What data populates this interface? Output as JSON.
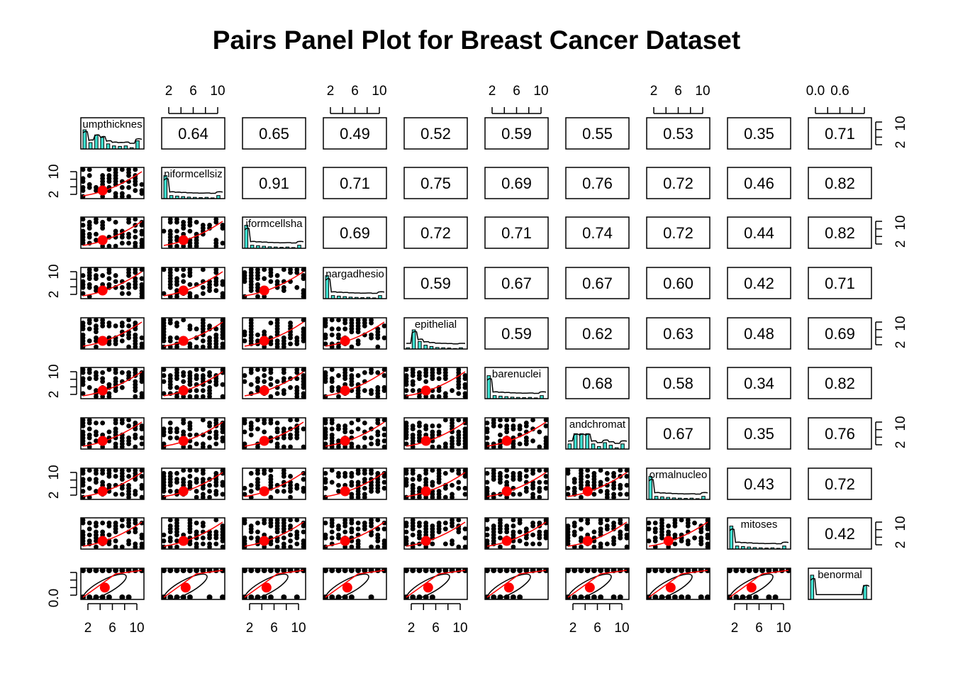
{
  "chart_data": {
    "type": "pairs",
    "title": "Pairs Panel Plot for Breast Cancer Dataset",
    "variables": [
      "umpthicknes",
      "niformcellsiz",
      "iformcellsha",
      "nargadhesio",
      "epithelial",
      "barenuclei",
      "andchromat",
      "ormalnucleo",
      "mitoses",
      "benormal"
    ],
    "correlations": [
      [
        null,
        0.64,
        0.65,
        0.49,
        0.52,
        0.59,
        0.55,
        0.53,
        0.35,
        0.71
      ],
      [
        null,
        null,
        0.91,
        0.71,
        0.75,
        0.69,
        0.76,
        0.72,
        0.46,
        0.82
      ],
      [
        null,
        null,
        null,
        0.69,
        0.72,
        0.71,
        0.74,
        0.72,
        0.44,
        0.82
      ],
      [
        null,
        null,
        null,
        null,
        0.59,
        0.67,
        0.67,
        0.6,
        0.42,
        0.71
      ],
      [
        null,
        null,
        null,
        null,
        null,
        0.59,
        0.62,
        0.63,
        0.48,
        0.69
      ],
      [
        null,
        null,
        null,
        null,
        null,
        null,
        0.68,
        0.58,
        0.34,
        0.82
      ],
      [
        null,
        null,
        null,
        null,
        null,
        null,
        null,
        0.67,
        0.35,
        0.76
      ],
      [
        null,
        null,
        null,
        null,
        null,
        null,
        null,
        null,
        0.43,
        0.72
      ],
      [
        null,
        null,
        null,
        null,
        null,
        null,
        null,
        null,
        null,
        0.42
      ],
      [
        null,
        null,
        null,
        null,
        null,
        null,
        null,
        null,
        null,
        null
      ]
    ],
    "correlation_labels": [
      [
        null,
        "0.64",
        "0.65",
        "0.49",
        "0.52",
        "0.59",
        "0.55",
        "0.53",
        "0.35",
        "0.71"
      ],
      [
        null,
        null,
        "0.91",
        "0.71",
        "0.75",
        "0.69",
        "0.76",
        "0.72",
        "0.46",
        "0.82"
      ],
      [
        null,
        null,
        null,
        "0.69",
        "0.72",
        "0.71",
        "0.74",
        "0.72",
        "0.44",
        "0.82"
      ],
      [
        null,
        null,
        null,
        null,
        "0.59",
        "0.67",
        "0.67",
        "0.60",
        "0.42",
        "0.71"
      ],
      [
        null,
        null,
        null,
        null,
        null,
        "0.59",
        "0.62",
        "0.63",
        "0.48",
        "0.69"
      ],
      [
        null,
        null,
        null,
        null,
        null,
        null,
        "0.68",
        "0.58",
        "0.34",
        "0.82"
      ],
      [
        null,
        null,
        null,
        null,
        null,
        null,
        null,
        "0.67",
        "0.35",
        "0.76"
      ],
      [
        null,
        null,
        null,
        null,
        null,
        null,
        null,
        null,
        "0.43",
        "0.72"
      ],
      [
        null,
        null,
        null,
        null,
        null,
        null,
        null,
        null,
        null,
        "0.42"
      ],
      [
        null,
        null,
        null,
        null,
        null,
        null,
        null,
        null,
        null,
        null
      ]
    ],
    "axes": {
      "top_ticks": [
        {
          "column": 1,
          "labels": [
            "2",
            "6",
            "10"
          ]
        },
        {
          "column": 3,
          "labels": [
            "2",
            "6",
            "10"
          ]
        },
        {
          "column": 5,
          "labels": [
            "2",
            "6",
            "10"
          ]
        },
        {
          "column": 7,
          "labels": [
            "2",
            "6",
            "10"
          ]
        },
        {
          "column": 9,
          "labels": [
            "0.0",
            "0.6"
          ]
        }
      ],
      "bottom_ticks": [
        {
          "column": 0,
          "labels": [
            "2",
            "6",
            "10"
          ]
        },
        {
          "column": 2,
          "labels": [
            "2",
            "6",
            "10"
          ]
        },
        {
          "column": 4,
          "labels": [
            "2",
            "6",
            "10"
          ]
        },
        {
          "column": 6,
          "labels": [
            "2",
            "6",
            "10"
          ]
        },
        {
          "column": 8,
          "labels": [
            "2",
            "6",
            "10"
          ]
        }
      ],
      "left_ticks": [
        {
          "row": 1,
          "labels": [
            "2",
            "10"
          ]
        },
        {
          "row": 3,
          "labels": [
            "2",
            "10"
          ]
        },
        {
          "row": 5,
          "labels": [
            "2",
            "10"
          ]
        },
        {
          "row": 7,
          "labels": [
            "2",
            "10"
          ]
        },
        {
          "row": 9,
          "labels": [
            "0.0"
          ]
        }
      ],
      "right_ticks": [
        {
          "row": 0,
          "labels": [
            "2",
            "10"
          ]
        },
        {
          "row": 2,
          "labels": [
            "2",
            "10"
          ]
        },
        {
          "row": 4,
          "labels": [
            "2",
            "10"
          ]
        },
        {
          "row": 6,
          "labels": [
            "2",
            "10"
          ]
        },
        {
          "row": 8,
          "labels": [
            "2",
            "10"
          ]
        }
      ],
      "range_1_10": [
        1,
        10
      ],
      "range_binary": [
        0,
        1
      ]
    },
    "diagonal": "histogram with density curve",
    "lower": "scatter with loess smooth and correlation ellipse",
    "upper": "pearson correlation"
  },
  "colors": {
    "histogram_fill": "#40e0d0",
    "smooth_line": "#ff0000",
    "centroid": "#ff0000",
    "points": "#000000"
  }
}
